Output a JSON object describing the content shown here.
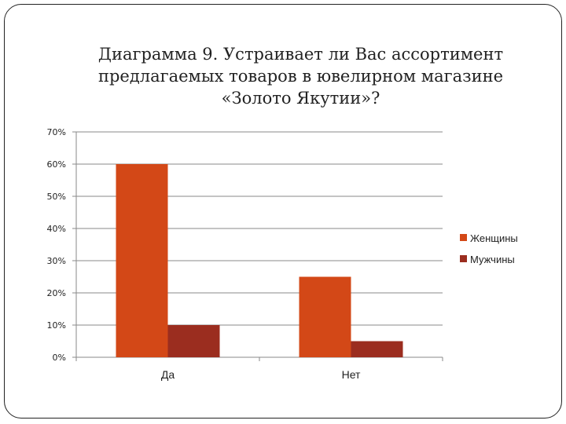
{
  "chart_data": {
    "type": "bar",
    "title_lines": [
      "Диаграмма 9. Устраивает ли Вас ассортимент",
      "предлагаемых товаров в ювелирном магазине",
      "«Золото Якутии»?"
    ],
    "categories": [
      "Да",
      "Нет"
    ],
    "series": [
      {
        "name": "Женщины",
        "values": [
          0.6,
          0.25
        ],
        "color": "#D34817"
      },
      {
        "name": "Мужчины",
        "values": [
          0.1,
          0.05
        ],
        "color": "#9B2D1F"
      }
    ],
    "ylim": [
      0,
      0.7
    ],
    "yticks": [
      0,
      0.1,
      0.2,
      0.3,
      0.4,
      0.5,
      0.6,
      0.7
    ],
    "ytick_labels": [
      "0%",
      "10%",
      "20%",
      "30%",
      "40%",
      "50%",
      "60%",
      "70%"
    ],
    "grid": true,
    "legend_position": "right"
  }
}
